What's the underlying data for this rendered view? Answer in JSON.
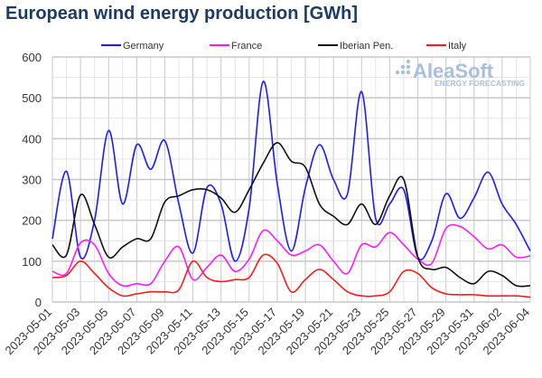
{
  "chart_data": {
    "type": "line",
    "title": "European wind energy production [GWh]",
    "xlabel": "",
    "ylabel": "",
    "ylim": [
      0,
      600
    ],
    "yticks": [
      0,
      100,
      200,
      300,
      400,
      500,
      600
    ],
    "grid": true,
    "legend": "top",
    "watermark": "AleaSoft ENERGY FORECASTING",
    "x": [
      "2023-05-01",
      "2023-05-02",
      "2023-05-03",
      "2023-05-04",
      "2023-05-05",
      "2023-05-06",
      "2023-05-07",
      "2023-05-08",
      "2023-05-09",
      "2023-05-10",
      "2023-05-11",
      "2023-05-12",
      "2023-05-13",
      "2023-05-14",
      "2023-05-15",
      "2023-05-16",
      "2023-05-17",
      "2023-05-18",
      "2023-05-19",
      "2023-05-20",
      "2023-05-21",
      "2023-05-22",
      "2023-05-23",
      "2023-05-24",
      "2023-05-25",
      "2023-05-26",
      "2023-05-27",
      "2023-05-28",
      "2023-05-29",
      "2023-05-30",
      "2023-05-31",
      "2023-06-01",
      "2023-06-02",
      "2023-06-03",
      "2023-06-04"
    ],
    "series": [
      {
        "name": "Germany",
        "color": "#1a1aff",
        "values": [
          155,
          320,
          110,
          200,
          420,
          240,
          385,
          325,
          395,
          240,
          120,
          280,
          240,
          100,
          230,
          540,
          290,
          125,
          280,
          385,
          300,
          265,
          515,
          205,
          240,
          275,
          110,
          150,
          265,
          205,
          255,
          318,
          240,
          190,
          125
        ]
      },
      {
        "name": "France",
        "color": "#ff1aff",
        "values": [
          75,
          70,
          145,
          140,
          70,
          40,
          45,
          45,
          100,
          135,
          55,
          85,
          115,
          75,
          105,
          175,
          150,
          115,
          125,
          140,
          100,
          70,
          140,
          135,
          170,
          140,
          105,
          95,
          180,
          185,
          160,
          130,
          140,
          110,
          113
        ]
      },
      {
        "name": "Iberian Pen.",
        "color": "#111111",
        "values": [
          140,
          115,
          262,
          190,
          110,
          135,
          155,
          155,
          245,
          260,
          275,
          275,
          255,
          220,
          275,
          340,
          390,
          345,
          330,
          240,
          210,
          190,
          240,
          190,
          260,
          300,
          110,
          80,
          85,
          60,
          45,
          75,
          65,
          40,
          40
        ]
      },
      {
        "name": "Italy",
        "color": "#ff1a1a",
        "values": [
          60,
          65,
          100,
          70,
          35,
          15,
          20,
          25,
          25,
          30,
          100,
          60,
          50,
          55,
          60,
          115,
          95,
          25,
          55,
          80,
          55,
          25,
          15,
          15,
          25,
          75,
          70,
          35,
          20,
          18,
          18,
          15,
          15,
          15,
          12
        ]
      }
    ]
  }
}
